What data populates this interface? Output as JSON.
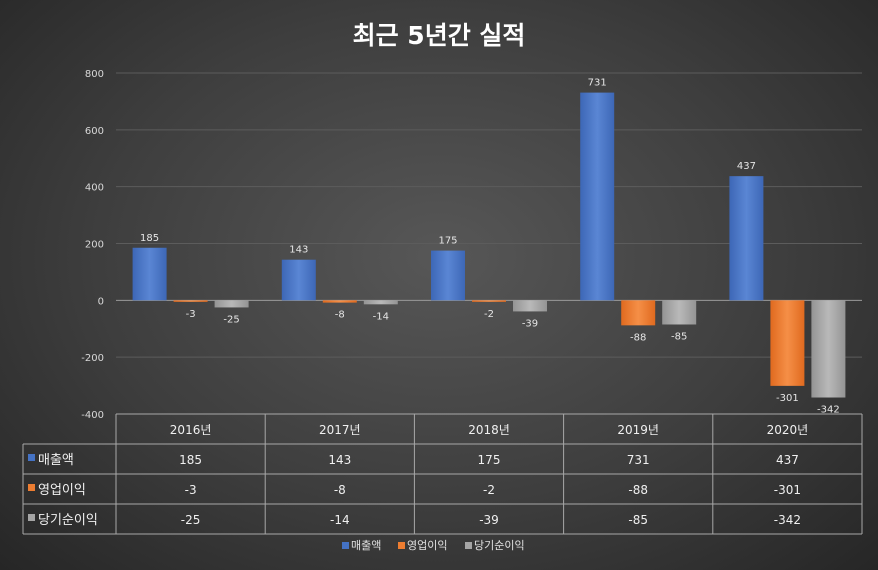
{
  "chart_data": {
    "type": "bar",
    "title": "최근 5년간 실적",
    "categories": [
      "2016년",
      "2017년",
      "2018년",
      "2019년",
      "2020년"
    ],
    "series": [
      {
        "name": "매출액",
        "values": [
          185,
          143,
          175,
          731,
          437
        ]
      },
      {
        "name": "영업이익",
        "values": [
          -3,
          -8,
          -2,
          -88,
          -301
        ]
      },
      {
        "name": "당기순이익",
        "values": [
          -25,
          -14,
          -39,
          -85,
          -342
        ]
      }
    ],
    "ylim": [
      -400,
      800
    ],
    "yticks": [
      800,
      600,
      400,
      200,
      0,
      -200,
      -400
    ],
    "grid": true,
    "data_table": true,
    "legend_position": "bottom",
    "colors": [
      "#4472c4",
      "#ed7d31",
      "#a5a5a5"
    ]
  }
}
